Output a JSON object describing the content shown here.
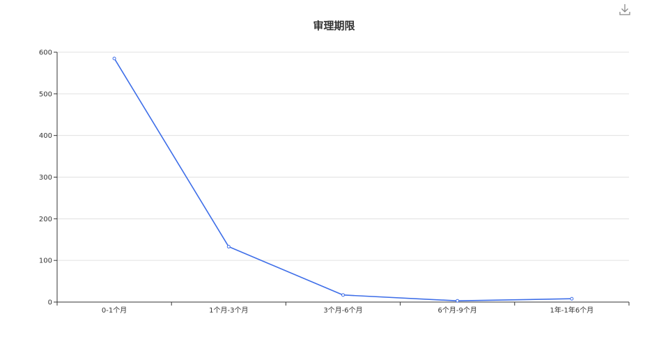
{
  "chart_data": {
    "type": "line",
    "title": "审理期限",
    "categories": [
      "0-1个月",
      "1个月-3个月",
      "3个月-6个月",
      "6个月-9个月",
      "1年-1年6个月"
    ],
    "series": [
      {
        "values": [
          585,
          133,
          17,
          3,
          8
        ]
      }
    ],
    "ylim": [
      0,
      600
    ],
    "yticks": [
      0,
      100,
      200,
      300,
      400,
      500,
      600
    ],
    "grid": true,
    "legend": "none",
    "colors": {
      "line": "#3e6ee8",
      "grid": "#e0e0e0",
      "axis": "#333333",
      "point_fill": "#ffffff"
    }
  },
  "toolbox": {
    "download_icon": "download-icon"
  }
}
